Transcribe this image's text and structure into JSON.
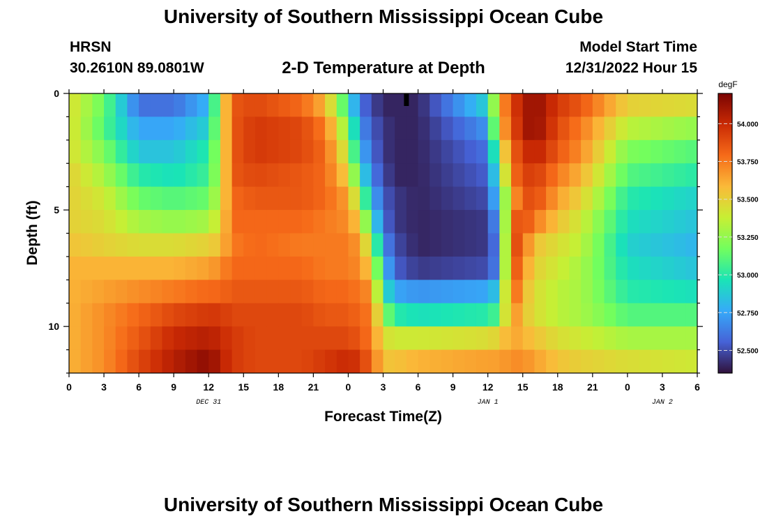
{
  "header": {
    "title": "University of Southern Mississippi Ocean Cube",
    "station": "HRSN",
    "coords": "30.2610N  89.0801W",
    "subtitle": "2-D Temperature at Depth",
    "model_start_label": "Model Start Time",
    "model_start_value": "12/31/2022 Hour 15",
    "footer_title": "University of Southern Mississippi Ocean Cube"
  },
  "chart_data": {
    "type": "heatmap",
    "title": "2-D Temperature at Depth",
    "xlabel": "Forecast Time(Z)",
    "ylabel": "Depth (ft)",
    "x_start_hour": 0,
    "x_end_hour": 54,
    "x_tick_hours": [
      0,
      3,
      6,
      9,
      12,
      15,
      18,
      21,
      24,
      27,
      30,
      33,
      36,
      39,
      42,
      45,
      48,
      51,
      54
    ],
    "x_tick_labels": [
      "0",
      "3",
      "6",
      "9",
      "12",
      "15",
      "18",
      "21",
      "0",
      "3",
      "6",
      "9",
      "12",
      "15",
      "18",
      "21",
      "0",
      "3",
      "6"
    ],
    "date_labels": [
      {
        "hour": 12,
        "label": "DEC 31"
      },
      {
        "hour": 36,
        "label": "JAN 1"
      },
      {
        "hour": 51,
        "label": "JAN 2"
      }
    ],
    "marker_hour": 29,
    "ylim": [
      0,
      12
    ],
    "y_tick_values": [
      0,
      5,
      10
    ],
    "y_tick_labels": [
      "0",
      "5",
      "10"
    ],
    "colorbar": {
      "unit": "degF",
      "min": 52.35,
      "max": 54.2,
      "tick_values": [
        52.5,
        52.75,
        53.0,
        53.25,
        53.5,
        53.75,
        54.0
      ],
      "tick_labels": [
        "52.500",
        "52.750",
        "53.000",
        "53.250",
        "53.500",
        "53.750",
        "54.000"
      ],
      "stops": [
        "#30123b",
        "#4662d7",
        "#36aaf9",
        "#1ae4b6",
        "#72fe5e",
        "#c7ef34",
        "#faba39",
        "#f66b19",
        "#ca2a04",
        "#7a0403"
      ]
    },
    "depth_bins_ft": [
      "0-1",
      "1-2",
      "2-3",
      "3-4",
      "4-5",
      "5-6",
      "6-7",
      "7-8",
      "8-9",
      "9-10",
      "10-11",
      "11-12"
    ],
    "key_times_hours": [
      0,
      3,
      6,
      9,
      12,
      13,
      14,
      16,
      20,
      22,
      24,
      25,
      26,
      27,
      28,
      30,
      36,
      37,
      38,
      39,
      40,
      42,
      44,
      48,
      54
    ],
    "values_degF": [
      [
        53.45,
        53.15,
        52.6,
        52.6,
        52.8,
        53.35,
        53.85,
        53.9,
        53.8,
        53.6,
        53.0,
        52.6,
        52.5,
        52.4,
        52.4,
        52.4,
        52.9,
        53.6,
        53.9,
        54.05,
        54.15,
        53.95,
        53.85,
        53.5,
        53.45
      ],
      [
        53.45,
        53.1,
        52.75,
        52.75,
        52.9,
        53.35,
        53.85,
        53.95,
        53.9,
        53.75,
        53.2,
        52.7,
        52.55,
        52.45,
        52.4,
        52.4,
        52.7,
        53.55,
        53.85,
        54.05,
        54.15,
        53.9,
        53.75,
        53.35,
        53.25
      ],
      [
        53.45,
        53.2,
        52.85,
        52.85,
        53.0,
        53.35,
        53.85,
        53.95,
        53.9,
        53.8,
        53.35,
        52.8,
        52.6,
        52.45,
        52.4,
        52.4,
        52.6,
        53.3,
        53.8,
        53.95,
        54.05,
        53.85,
        53.7,
        53.2,
        53.1
      ],
      [
        53.5,
        53.3,
        53.0,
        52.95,
        53.05,
        53.35,
        53.85,
        53.9,
        53.85,
        53.8,
        53.5,
        53.0,
        52.65,
        52.5,
        52.4,
        52.4,
        52.55,
        53.1,
        53.75,
        53.9,
        53.95,
        53.75,
        53.6,
        53.1,
        53.0
      ],
      [
        53.5,
        53.4,
        53.15,
        53.1,
        53.15,
        53.4,
        53.8,
        53.85,
        53.85,
        53.8,
        53.65,
        53.25,
        52.8,
        52.55,
        52.45,
        52.4,
        52.5,
        52.95,
        53.6,
        53.85,
        53.9,
        53.65,
        53.5,
        53.0,
        52.9
      ],
      [
        53.5,
        53.45,
        53.3,
        53.25,
        53.3,
        53.45,
        53.8,
        53.8,
        53.8,
        53.75,
        53.7,
        53.5,
        53.0,
        52.6,
        52.45,
        52.4,
        52.45,
        52.8,
        53.8,
        53.9,
        53.75,
        53.55,
        53.4,
        52.95,
        52.85
      ],
      [
        53.55,
        53.5,
        53.45,
        53.45,
        53.5,
        53.55,
        53.75,
        53.8,
        53.75,
        53.75,
        53.75,
        53.65,
        53.3,
        52.7,
        52.5,
        52.4,
        52.45,
        52.7,
        53.95,
        53.8,
        53.55,
        53.45,
        53.35,
        52.9,
        52.8
      ],
      [
        53.6,
        53.6,
        53.6,
        53.6,
        53.65,
        53.7,
        53.8,
        53.8,
        53.8,
        53.75,
        53.75,
        53.7,
        53.5,
        52.85,
        52.55,
        52.45,
        52.5,
        52.7,
        53.95,
        53.7,
        53.5,
        53.4,
        53.3,
        52.95,
        52.85
      ],
      [
        53.6,
        53.65,
        53.7,
        53.75,
        53.8,
        53.8,
        53.85,
        53.85,
        53.85,
        53.8,
        53.8,
        53.75,
        53.7,
        53.0,
        52.75,
        52.7,
        52.75,
        52.9,
        53.9,
        53.6,
        53.45,
        53.35,
        53.3,
        53.0,
        52.95
      ],
      [
        53.6,
        53.7,
        53.8,
        53.9,
        53.95,
        53.95,
        53.9,
        53.9,
        53.9,
        53.85,
        53.85,
        53.8,
        53.75,
        53.25,
        53.0,
        52.95,
        53.0,
        53.1,
        53.75,
        53.55,
        53.45,
        53.35,
        53.3,
        53.1,
        53.1
      ],
      [
        53.6,
        53.7,
        53.85,
        54.0,
        54.05,
        54.0,
        53.95,
        53.9,
        53.9,
        53.9,
        53.9,
        53.85,
        53.75,
        53.45,
        53.4,
        53.4,
        53.45,
        53.5,
        53.65,
        53.6,
        53.55,
        53.45,
        53.4,
        53.3,
        53.3
      ],
      [
        53.6,
        53.7,
        53.9,
        54.05,
        54.15,
        54.05,
        53.95,
        53.9,
        53.9,
        53.95,
        54.0,
        53.95,
        53.8,
        53.55,
        53.55,
        53.6,
        53.65,
        53.65,
        53.7,
        53.7,
        53.65,
        53.55,
        53.5,
        53.45,
        53.4
      ]
    ]
  }
}
